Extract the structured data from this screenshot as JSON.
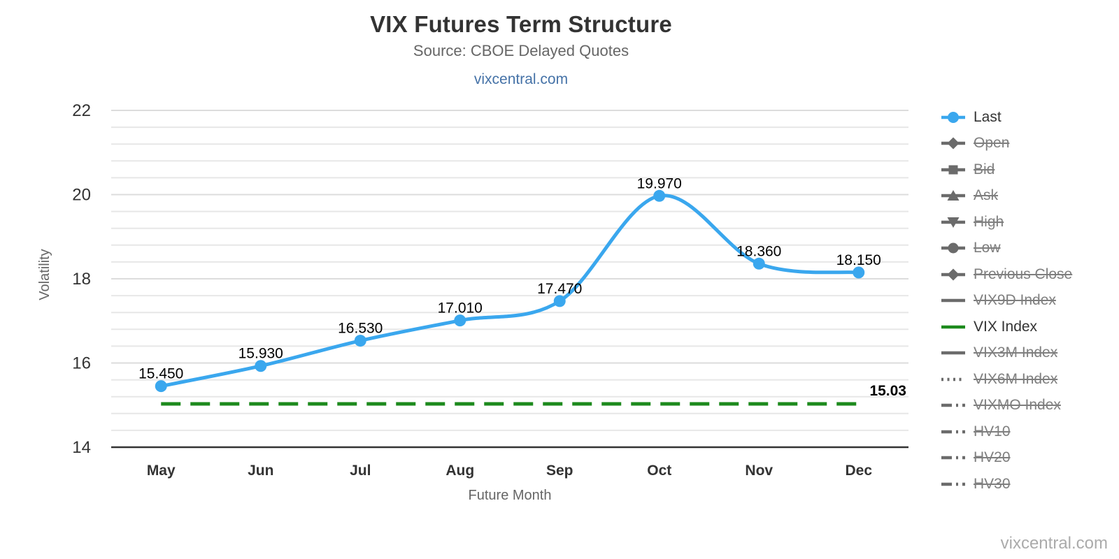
{
  "header": {
    "title": "VIX Futures Term Structure",
    "subtitle": "Source: CBOE Delayed Quotes",
    "link": "vixcentral.com"
  },
  "watermark": "vixcentral.com",
  "colors": {
    "last_series": "#3aa7ee",
    "vix_index_green": "#1d8a1d",
    "link_blue": "#4572a7",
    "grid_major": "#dcdcdc",
    "grid_minor": "#e7e7e7",
    "axis_line": "#333333",
    "text_dark": "#333333",
    "text_gray": "#666666",
    "data_label": "#000000",
    "legend_active_text": "#333333",
    "legend_disabled_text": "#7f7f7f",
    "legend_marker_gray": "#6b6b6b",
    "watermark_gray": "#ababab"
  },
  "chart_data": {
    "type": "line",
    "title": "VIX Futures Term Structure",
    "subtitle": "Source: CBOE Delayed Quotes",
    "categories": [
      "May",
      "Jun",
      "Jul",
      "Aug",
      "Sep",
      "Oct",
      "Nov",
      "Dec"
    ],
    "series": [
      {
        "name": "Last",
        "style": "spline",
        "marker": "circle",
        "color": "#3aa7ee",
        "values": [
          15.45,
          15.93,
          16.53,
          17.01,
          17.47,
          19.97,
          18.36,
          18.15
        ],
        "labels": [
          "15.450",
          "15.930",
          "16.530",
          "17.010",
          "17.470",
          "19.970",
          "18.360",
          "18.150"
        ]
      },
      {
        "name": "VIX Index",
        "style": "dashed-horizontal",
        "color": "#1d8a1d",
        "value": 15.03,
        "label": "15.03"
      }
    ],
    "xlabel": "Future Month",
    "ylabel": "Volatility",
    "ylim": [
      14,
      22
    ],
    "yticks": [
      22,
      20,
      18,
      16,
      14
    ],
    "ytick_interval": 2,
    "minor_tick_interval": 0.4,
    "grid": true,
    "legend_position": "right"
  },
  "legend": {
    "items": [
      {
        "label": "Last",
        "marker": "circle",
        "dash": "solid",
        "color": "#3aa7ee",
        "active": true
      },
      {
        "label": "Open",
        "marker": "diamond",
        "dash": "solid",
        "active": false
      },
      {
        "label": "Bid",
        "marker": "square",
        "dash": "solid",
        "active": false
      },
      {
        "label": "Ask",
        "marker": "triangle-up",
        "dash": "solid",
        "active": false
      },
      {
        "label": "High",
        "marker": "triangle-down",
        "dash": "solid",
        "active": false
      },
      {
        "label": "Low",
        "marker": "circle",
        "dash": "solid",
        "active": false
      },
      {
        "label": "Previous Close",
        "marker": "diamond",
        "dash": "solid",
        "active": false
      },
      {
        "label": "VIX9D Index",
        "marker": "none",
        "dash": "solid",
        "active": false
      },
      {
        "label": "VIX Index",
        "marker": "none",
        "dash": "solid",
        "color": "#1d8a1d",
        "active": true
      },
      {
        "label": "VIX3M Index",
        "marker": "none",
        "dash": "solid",
        "active": false
      },
      {
        "label": "VIX6M Index",
        "marker": "none",
        "dash": "dotted",
        "active": false
      },
      {
        "label": "VIXMO Index",
        "marker": "none",
        "dash": "dashdot",
        "active": false
      },
      {
        "label": "HV10",
        "marker": "none",
        "dash": "dashdot",
        "active": false
      },
      {
        "label": "HV20",
        "marker": "none",
        "dash": "dashdot",
        "active": false
      },
      {
        "label": "HV30",
        "marker": "none",
        "dash": "dashdot",
        "active": false
      }
    ]
  }
}
